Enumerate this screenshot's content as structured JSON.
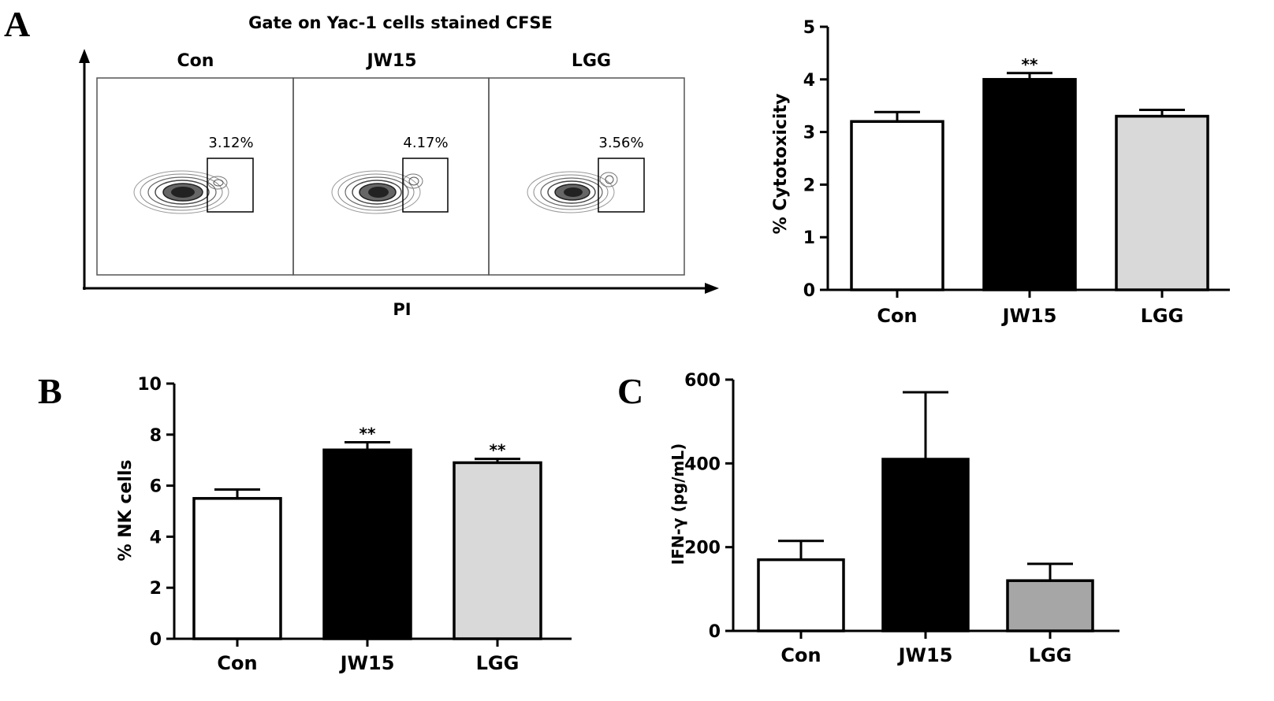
{
  "panel_labels": {
    "a": "A",
    "b": "B",
    "c": "C"
  },
  "flow": {
    "title": "Gate on Yac-1 cells stained CFSE",
    "xlabel": "PI",
    "panels": [
      {
        "name": "Con",
        "gate_percent": "3.12%"
      },
      {
        "name": "JW15",
        "gate_percent": "4.17%"
      },
      {
        "name": "LGG",
        "gate_percent": "3.56%"
      }
    ]
  },
  "chart_data": [
    {
      "panel": "A",
      "type": "bar",
      "categories": [
        "Con",
        "JW15",
        "LGG"
      ],
      "values": [
        3.2,
        4.0,
        3.3
      ],
      "errors": [
        0.18,
        0.12,
        0.12
      ],
      "significance": [
        "",
        "**",
        ""
      ],
      "bar_colors": [
        "#ffffff",
        "#000000",
        "#d9d9d9"
      ],
      "xlabel": "",
      "ylabel": "% Cytotoxicity",
      "ylim": [
        0,
        5
      ],
      "yticks": [
        0,
        1,
        2,
        3,
        4,
        5
      ],
      "grid": false
    },
    {
      "panel": "B",
      "type": "bar",
      "categories": [
        "Con",
        "JW15",
        "LGG"
      ],
      "values": [
        5.5,
        7.4,
        6.9
      ],
      "errors": [
        0.35,
        0.3,
        0.15
      ],
      "significance": [
        "",
        "**",
        "**"
      ],
      "bar_colors": [
        "#ffffff",
        "#000000",
        "#d9d9d9"
      ],
      "xlabel": "",
      "ylabel": "% NK cells",
      "ylim": [
        0,
        10
      ],
      "yticks": [
        0,
        2,
        4,
        6,
        8,
        10
      ],
      "grid": false
    },
    {
      "panel": "C",
      "type": "bar",
      "categories": [
        "Con",
        "JW15",
        "LGG"
      ],
      "values": [
        170,
        410,
        120
      ],
      "errors": [
        45,
        160,
        40
      ],
      "significance": [
        "",
        "",
        ""
      ],
      "bar_colors": [
        "#ffffff",
        "#000000",
        "#a6a6a6"
      ],
      "xlabel": "",
      "ylabel": "IFN-γ (pg/mL)",
      "ylim": [
        0,
        600
      ],
      "yticks": [
        0,
        200,
        400,
        600
      ],
      "grid": false
    }
  ]
}
